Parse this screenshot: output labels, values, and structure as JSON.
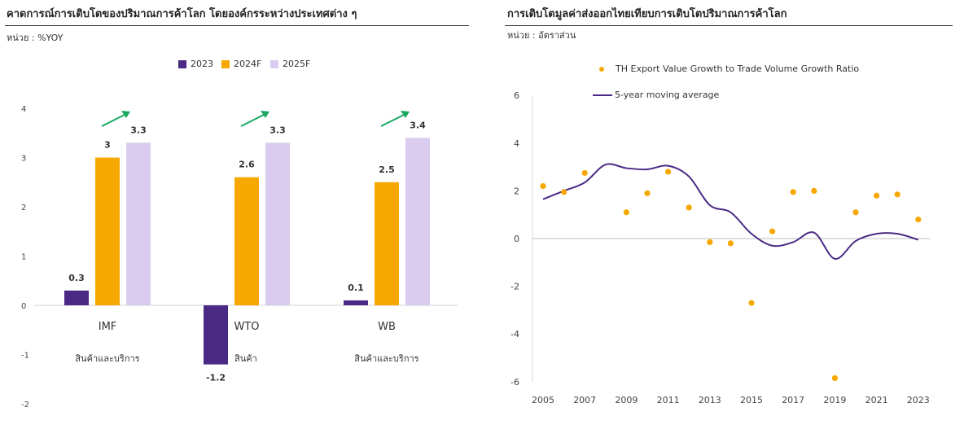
{
  "left": {
    "title": "คาดการณ์การเติบโตของปริมาณการค้าโลก โดยองค์กรระหว่างประเทศต่าง ๆ",
    "unit": "หน่วย : %YOY",
    "colors": {
      "2023": "#4b2a85",
      "2024F": "#f7a800",
      "2025F": "#d9ccee",
      "arrow": "#1aa860"
    }
  },
  "right": {
    "title": "การเติบโตมูลค่าส่งออกไทยเทียบการเติบโตปริมาณการค้าโลก",
    "unit": "หน่วย : อัตราส่วน",
    "colors": {
      "dots": "#f7a800",
      "line": "#4b2a85"
    }
  },
  "chart_data": [
    {
      "type": "bar",
      "title": "คาดการณ์การเติบโตของปริมาณการค้าโลก โดยองค์กรระหว่างประเทศต่าง ๆ",
      "ylabel": "%YOY",
      "ylim": [
        -2,
        4
      ],
      "yticks": [
        -2,
        -1,
        0,
        1,
        2,
        3,
        4
      ],
      "legend_position": "top",
      "categories": [
        "IMF",
        "WTO",
        "WB"
      ],
      "category_sublabels": [
        "สินค้าและบริการ",
        "สินค้า",
        "สินค้าและบริการ"
      ],
      "series": [
        {
          "name": "2023",
          "values": [
            0.3,
            -1.2,
            0.1
          ]
        },
        {
          "name": "2024F",
          "values": [
            3,
            2.6,
            2.5
          ]
        },
        {
          "name": "2025F",
          "values": [
            3.3,
            3.3,
            3.4
          ]
        }
      ],
      "data_labels": [
        [
          "0.3",
          "-1.2",
          "0.1"
        ],
        [
          "3",
          "2.6",
          "2.5"
        ],
        [
          "3.3",
          "3.3",
          "3.4"
        ]
      ],
      "annotations": [
        "upward-arrow",
        "upward-arrow",
        "upward-arrow"
      ]
    },
    {
      "type": "scatter",
      "title": "การเติบโตมูลค่าส่งออกไทยเทียบการเติบโตปริมาณการค้าโลก",
      "ylabel": "อัตราส่วน",
      "xlim": [
        2004.5,
        2023.5
      ],
      "ylim": [
        -6,
        6
      ],
      "xticks": [
        2005,
        2007,
        2009,
        2011,
        2013,
        2015,
        2017,
        2019,
        2021,
        2023
      ],
      "yticks": [
        -6,
        -4,
        -2,
        0,
        2,
        4,
        6
      ],
      "legend_position": "top",
      "series": [
        {
          "name": "TH Export Value Growth to Trade Volume Growth Ratio",
          "type": "scatter",
          "x": [
            2005,
            2006,
            2007,
            2008,
            2009,
            2010,
            2011,
            2012,
            2013,
            2014,
            2015,
            2016,
            2017,
            2018,
            2019,
            2020,
            2021,
            2022,
            2023
          ],
          "y": [
            2.2,
            1.95,
            2.75,
            null,
            1.1,
            1.9,
            2.8,
            1.3,
            -0.15,
            -0.2,
            -2.7,
            0.3,
            1.95,
            2.0,
            -5.85,
            1.1,
            1.8,
            1.85,
            0.8
          ]
        },
        {
          "name": "5-year moving average",
          "type": "line",
          "x": [
            2005,
            2006,
            2007,
            2008,
            2009,
            2010,
            2011,
            2012,
            2013,
            2014,
            2015,
            2016,
            2017,
            2018,
            2019,
            2020,
            2021,
            2022,
            2023
          ],
          "y": [
            1.65,
            2.0,
            2.35,
            3.1,
            2.95,
            2.9,
            3.05,
            2.6,
            1.4,
            1.1,
            0.2,
            -0.3,
            -0.15,
            0.25,
            -0.85,
            -0.1,
            0.2,
            0.2,
            -0.05
          ]
        }
      ]
    }
  ]
}
